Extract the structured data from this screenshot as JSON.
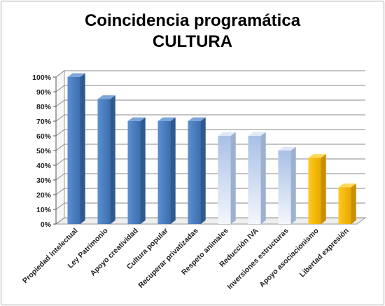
{
  "chart_data": {
    "type": "bar",
    "title": "Coincidencia programática",
    "subtitle": "CULTURA",
    "xlabel": "",
    "ylabel": "",
    "ylim": [
      0,
      100
    ],
    "y_ticks": [
      "0%",
      "10%",
      "20%",
      "30%",
      "40%",
      "50%",
      "60%",
      "70%",
      "80%",
      "90%",
      "100%"
    ],
    "grid": true,
    "legend": "none",
    "style": "3d-column",
    "categories": [
      "Propiedad intelectual",
      "Ley Patrimonio",
      "Apoyo creatividad",
      "Cultura popular",
      "Recuperar privatizadas",
      "Respeto animales",
      "Reducción IVA",
      "Inversiones estructuras",
      "Apoyo asociacionismo",
      "Libertad expresión"
    ],
    "values": [
      100,
      85,
      70,
      70,
      70,
      60,
      60,
      50,
      45,
      25
    ],
    "bar_colors": [
      "#4a7ebb",
      "#4a7ebb",
      "#4a7ebb",
      "#4a7ebb",
      "#4a7ebb",
      "#c5d5ee",
      "#c5d5ee",
      "#c5d5ee",
      "#f5b800",
      "#f5b800"
    ]
  }
}
